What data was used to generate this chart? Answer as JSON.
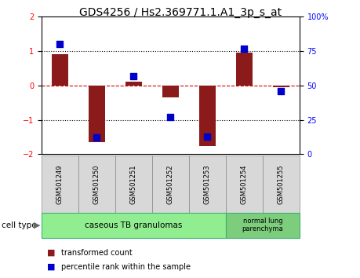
{
  "title": "GDS4256 / Hs2.369771.1.A1_3p_s_at",
  "samples": [
    "GSM501249",
    "GSM501250",
    "GSM501251",
    "GSM501252",
    "GSM501253",
    "GSM501254",
    "GSM501255"
  ],
  "transformed_count": [
    0.9,
    -1.65,
    0.1,
    -0.35,
    -1.75,
    0.95,
    -0.05
  ],
  "percentile_rank": [
    80,
    12,
    57,
    27,
    13,
    77,
    46
  ],
  "ylim_left": [
    -2,
    2
  ],
  "ylim_right": [
    0,
    100
  ],
  "yticks_left": [
    -2,
    -1,
    0,
    1,
    2
  ],
  "yticks_right": [
    0,
    25,
    50,
    75,
    100
  ],
  "ytick_labels_right": [
    "0",
    "25",
    "50",
    "75",
    "100%"
  ],
  "bar_color": "#8B1A1A",
  "dot_color": "#0000CC",
  "group1_samples": [
    0,
    1,
    2,
    3,
    4
  ],
  "group2_samples": [
    5,
    6
  ],
  "group1_label": "caseous TB granulomas",
  "group2_label": "normal lung\nparenchyma",
  "group1_color": "#90EE90",
  "group2_color": "#7CCD7C",
  "group_border_color": "#3CB371",
  "cell_type_label": "cell type",
  "legend_bar_label": "transformed count",
  "legend_dot_label": "percentile rank within the sample",
  "bar_width": 0.45,
  "dot_size": 30,
  "zero_line_color": "#CC0000",
  "dotted_line_color": "#000000",
  "title_fontsize": 10,
  "axis_fontsize": 7,
  "sample_fontsize": 6,
  "legend_fontsize": 7,
  "group_fontsize": 7.5
}
